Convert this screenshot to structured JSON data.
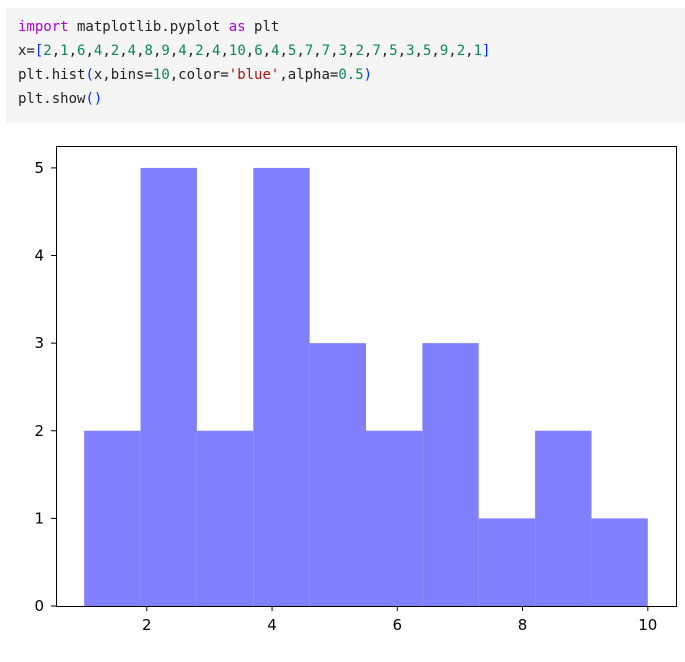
{
  "code_cell": {
    "lines": [
      [
        {
          "t": "import",
          "c": "kw"
        },
        {
          "t": " matplotlib.pyplot ",
          "c": ""
        },
        {
          "t": "as",
          "c": "kw"
        },
        {
          "t": " plt",
          "c": ""
        }
      ],
      [
        {
          "t": "x=",
          "c": ""
        },
        {
          "t": "[",
          "c": "br"
        },
        {
          "t": "2",
          "c": "nm"
        },
        {
          "t": ",",
          "c": ""
        },
        {
          "t": "1",
          "c": "nm"
        },
        {
          "t": ",",
          "c": ""
        },
        {
          "t": "6",
          "c": "nm"
        },
        {
          "t": ",",
          "c": ""
        },
        {
          "t": "4",
          "c": "nm"
        },
        {
          "t": ",",
          "c": ""
        },
        {
          "t": "2",
          "c": "nm"
        },
        {
          "t": ",",
          "c": ""
        },
        {
          "t": "4",
          "c": "nm"
        },
        {
          "t": ",",
          "c": ""
        },
        {
          "t": "8",
          "c": "nm"
        },
        {
          "t": ",",
          "c": ""
        },
        {
          "t": "9",
          "c": "nm"
        },
        {
          "t": ",",
          "c": ""
        },
        {
          "t": "4",
          "c": "nm"
        },
        {
          "t": ",",
          "c": ""
        },
        {
          "t": "2",
          "c": "nm"
        },
        {
          "t": ",",
          "c": ""
        },
        {
          "t": "4",
          "c": "nm"
        },
        {
          "t": ",",
          "c": ""
        },
        {
          "t": "10",
          "c": "nm"
        },
        {
          "t": ",",
          "c": ""
        },
        {
          "t": "6",
          "c": "nm"
        },
        {
          "t": ",",
          "c": ""
        },
        {
          "t": "4",
          "c": "nm"
        },
        {
          "t": ",",
          "c": ""
        },
        {
          "t": "5",
          "c": "nm"
        },
        {
          "t": ",",
          "c": ""
        },
        {
          "t": "7",
          "c": "nm"
        },
        {
          "t": ",",
          "c": ""
        },
        {
          "t": "7",
          "c": "nm"
        },
        {
          "t": ",",
          "c": ""
        },
        {
          "t": "3",
          "c": "nm"
        },
        {
          "t": ",",
          "c": ""
        },
        {
          "t": "2",
          "c": "nm"
        },
        {
          "t": ",",
          "c": ""
        },
        {
          "t": "7",
          "c": "nm"
        },
        {
          "t": ",",
          "c": ""
        },
        {
          "t": "5",
          "c": "nm"
        },
        {
          "t": ",",
          "c": ""
        },
        {
          "t": "3",
          "c": "nm"
        },
        {
          "t": ",",
          "c": ""
        },
        {
          "t": "5",
          "c": "nm"
        },
        {
          "t": ",",
          "c": ""
        },
        {
          "t": "9",
          "c": "nm"
        },
        {
          "t": ",",
          "c": ""
        },
        {
          "t": "2",
          "c": "nm"
        },
        {
          "t": ",",
          "c": ""
        },
        {
          "t": "1",
          "c": "nm"
        },
        {
          "t": "]",
          "c": "br"
        }
      ],
      [
        {
          "t": "plt.hist",
          "c": ""
        },
        {
          "t": "(",
          "c": "br"
        },
        {
          "t": "x,bins=",
          "c": ""
        },
        {
          "t": "10",
          "c": "nm"
        },
        {
          "t": ",color=",
          "c": ""
        },
        {
          "t": "'blue'",
          "c": "st"
        },
        {
          "t": ",alpha=",
          "c": ""
        },
        {
          "t": "0.5",
          "c": "nm"
        },
        {
          "t": ")",
          "c": "br"
        }
      ],
      [
        {
          "t": "plt.show",
          "c": ""
        },
        {
          "t": "()",
          "c": "br"
        }
      ]
    ]
  },
  "colors": {
    "bar_fill": "#8080ff",
    "code_background": "#f5f5f5"
  },
  "chart_data": {
    "type": "bar",
    "title": "",
    "xlabel": "",
    "ylabel": "",
    "bin_edges": [
      1,
      1.9,
      2.8,
      3.7,
      4.6,
      5.5,
      6.4,
      7.3,
      8.2,
      9.1,
      10
    ],
    "values": [
      2,
      5,
      2,
      5,
      3,
      2,
      3,
      1,
      2,
      1
    ],
    "xlim": [
      0.55,
      10.45
    ],
    "ylim": [
      0,
      5.25
    ],
    "xticks": [
      2,
      4,
      6,
      8,
      10
    ],
    "yticks": [
      0,
      1,
      2,
      3,
      4,
      5
    ],
    "grid": false,
    "legend": "none"
  }
}
